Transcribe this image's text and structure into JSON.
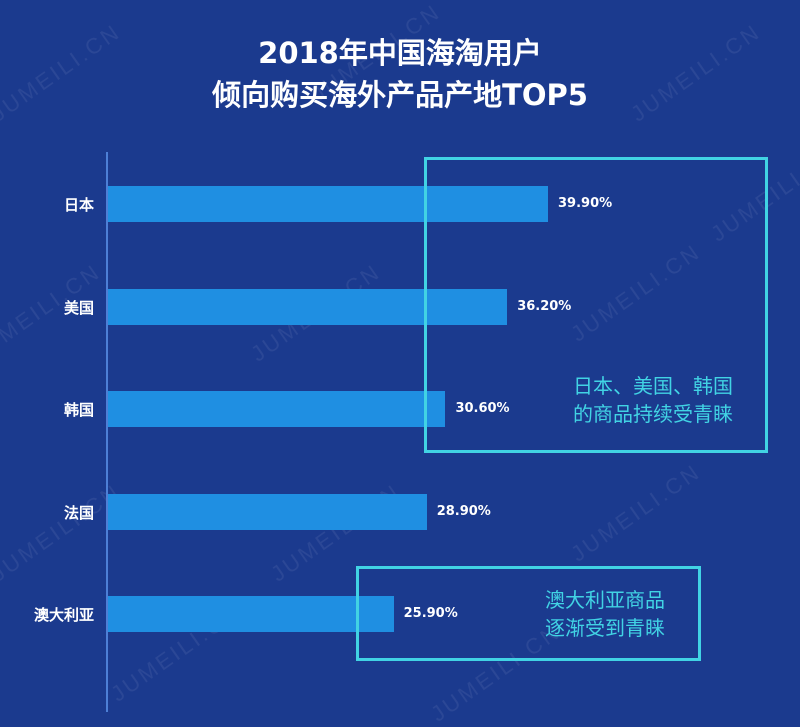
{
  "watermark": "JUMEILI.CN",
  "colors": {
    "background": "#1b3a8e",
    "bar": "#1f8fe2",
    "highlight": "#41d3e4"
  },
  "chart_data": {
    "type": "bar",
    "orientation": "horizontal",
    "title_lines": [
      "2018年中国海淘用户",
      "倾向购买海外产品产地TOP5"
    ],
    "categories": [
      "日本",
      "美国",
      "韩国",
      "法国",
      "澳大利亚"
    ],
    "values": [
      39.9,
      36.2,
      30.6,
      28.9,
      25.9
    ],
    "value_labels": [
      "39.90%",
      "36.20%",
      "30.60%",
      "28.90%",
      "25.90%"
    ],
    "xlim": [
      0,
      40
    ],
    "grid": false,
    "annotations": [
      {
        "lines": [
          "日本、美国、韩国",
          "的商品持续受青睐"
        ],
        "covers": [
          "日本",
          "美国",
          "韩国"
        ]
      },
      {
        "lines": [
          "澳大利亚商品",
          "逐渐受到青睐"
        ],
        "covers": [
          "澳大利亚"
        ]
      }
    ]
  }
}
